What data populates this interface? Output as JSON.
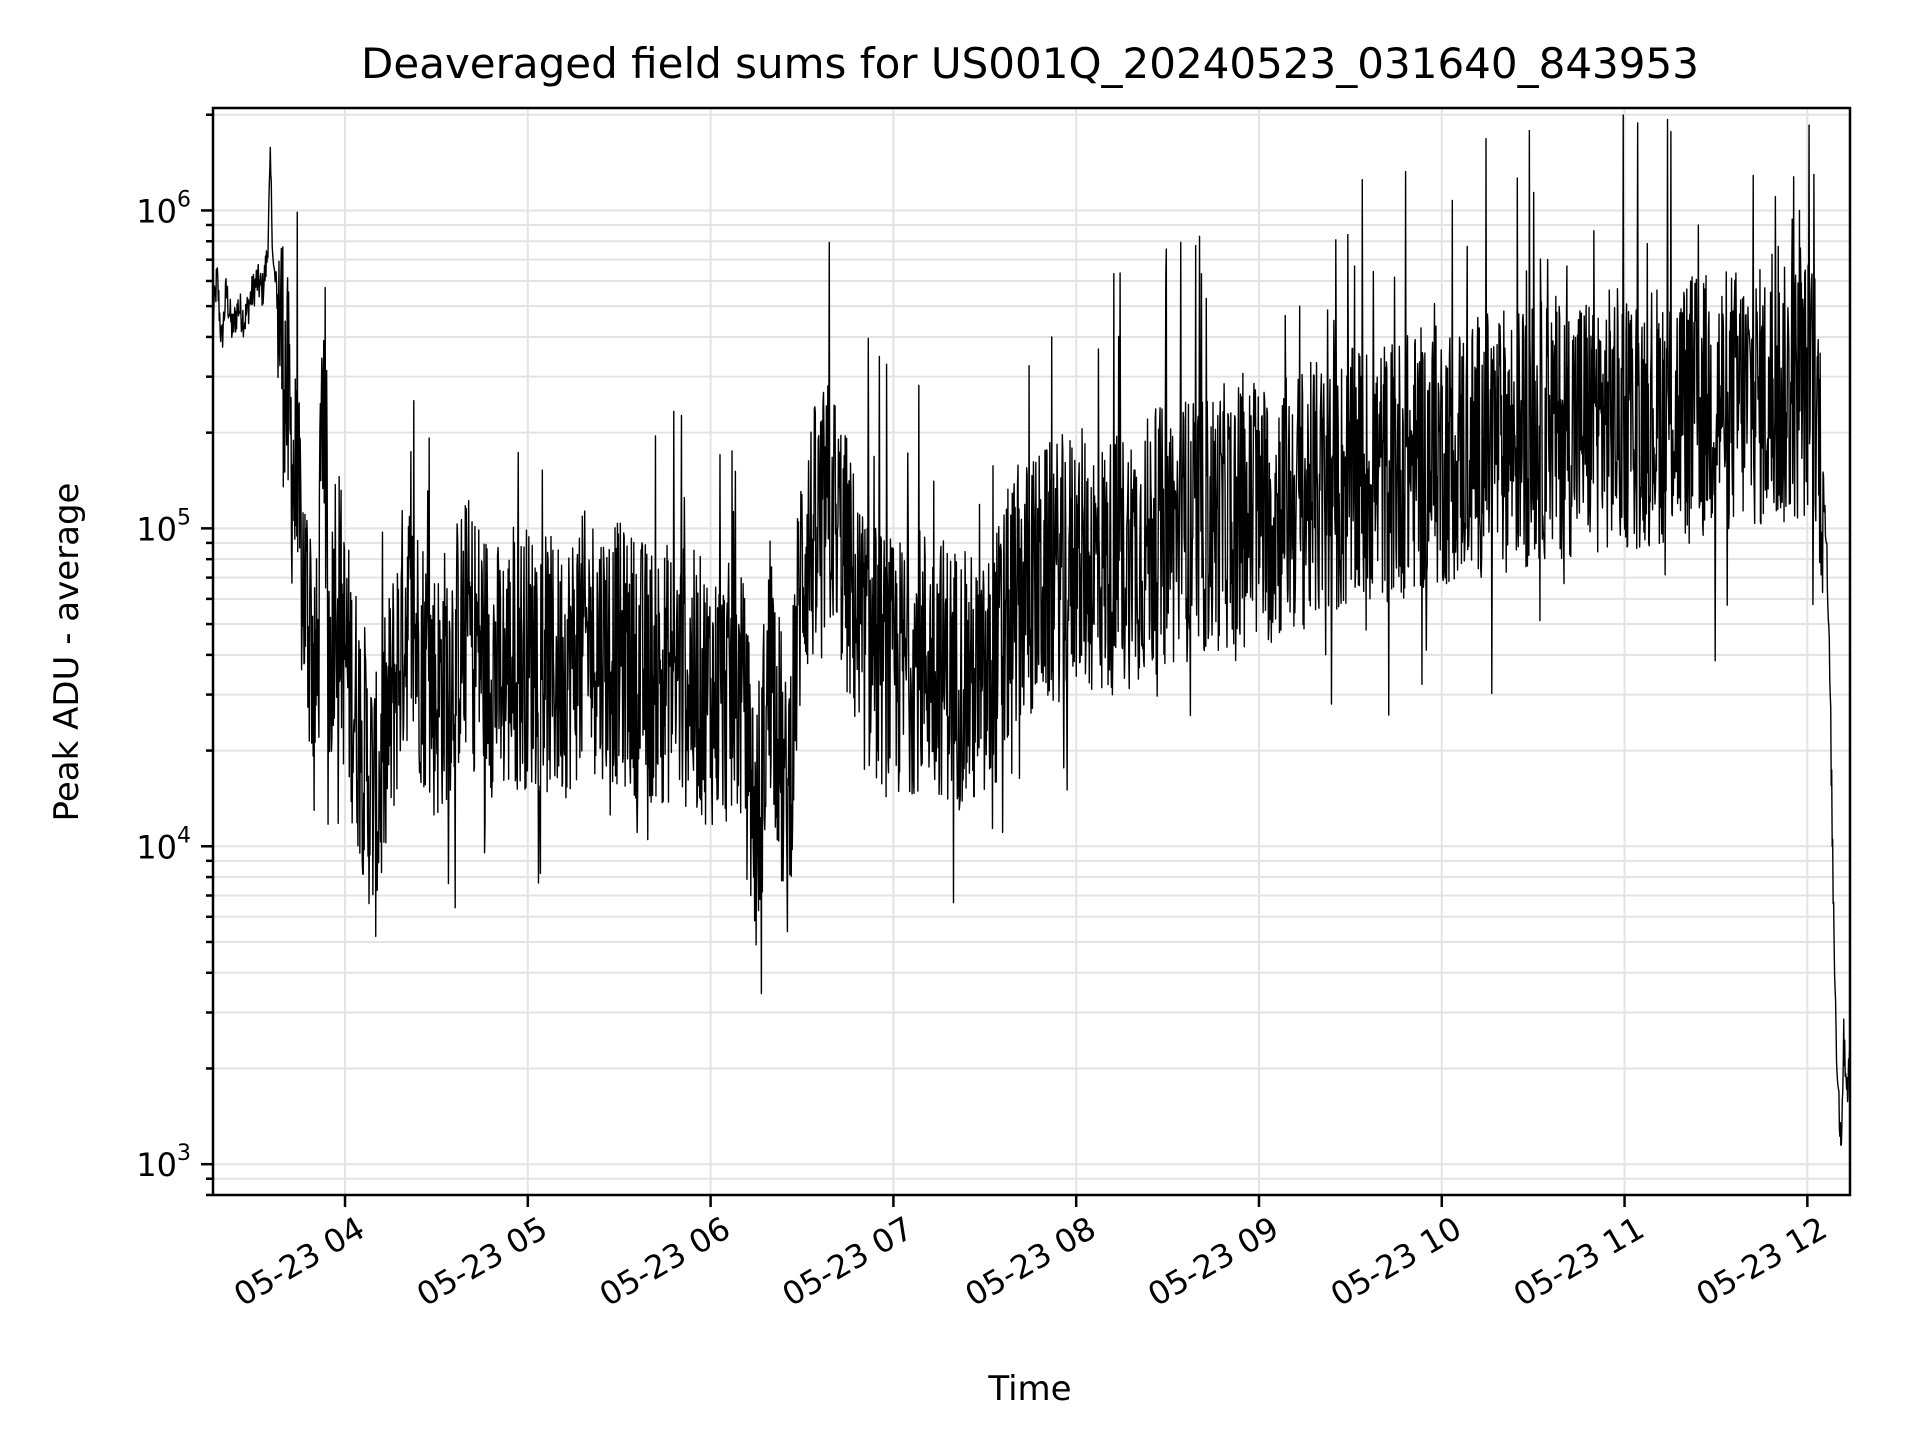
{
  "chart_data": {
    "type": "line",
    "title": "Deaveraged field sums for US001Q_20240523_031640_843953",
    "xlabel": "Time",
    "ylabel": "Peak ADU - average",
    "yscale": "log",
    "ylim": [
      800,
      2100000
    ],
    "xlim": [
      "2024-05-23T03:16:40",
      "2024-05-23T12:14:00"
    ],
    "grid": true,
    "line_color": "#000000",
    "x_ticks": [
      {
        "label": "05-23 04",
        "value": "2024-05-23T04:00:00"
      },
      {
        "label": "05-23 05",
        "value": "2024-05-23T05:00:00"
      },
      {
        "label": "05-23 06",
        "value": "2024-05-23T06:00:00"
      },
      {
        "label": "05-23 07",
        "value": "2024-05-23T07:00:00"
      },
      {
        "label": "05-23 08",
        "value": "2024-05-23T08:00:00"
      },
      {
        "label": "05-23 09",
        "value": "2024-05-23T09:00:00"
      },
      {
        "label": "05-23 10",
        "value": "2024-05-23T10:00:00"
      },
      {
        "label": "05-23 11",
        "value": "2024-05-23T11:00:00"
      },
      {
        "label": "05-23 12",
        "value": "2024-05-23T12:00:00"
      }
    ],
    "y_ticks": [
      {
        "base": "10",
        "exp": "3",
        "value": 1000
      },
      {
        "base": "10",
        "exp": "4",
        "value": 10000
      },
      {
        "base": "10",
        "exp": "5",
        "value": 100000
      },
      {
        "base": "10",
        "exp": "6",
        "value": 1000000
      }
    ],
    "series": [
      {
        "points": [
          [
            "2024-05-23T03:16:40",
            450000
          ],
          [
            "2024-05-23T03:18:00",
            620000
          ],
          [
            "2024-05-23T03:19:30",
            380000
          ],
          [
            "2024-05-23T03:21:00",
            560000
          ],
          [
            "2024-05-23T03:23:00",
            420000
          ],
          [
            "2024-05-23T03:25:00",
            500000
          ],
          [
            "2024-05-23T03:27:00",
            450000
          ],
          [
            "2024-05-23T03:29:00",
            530000
          ],
          [
            "2024-05-23T03:31:00",
            600000
          ],
          [
            "2024-05-23T03:33:00",
            560000
          ],
          [
            "2024-05-23T03:34:30",
            720000
          ],
          [
            "2024-05-23T03:35:30",
            1400000
          ],
          [
            "2024-05-23T03:36:30",
            650000
          ],
          [
            "2024-05-23T03:38:00",
            520000
          ],
          [
            "2024-05-23T03:40:00",
            330000
          ],
          [
            "2024-05-23T03:41:30",
            220000
          ],
          [
            "2024-05-23T03:43:00",
            150000
          ],
          [
            "2024-05-23T03:45:00",
            95000
          ],
          [
            "2024-05-23T03:47:00",
            60000
          ],
          [
            "2024-05-23T03:49:00",
            45000
          ],
          [
            "2024-05-23T03:51:00",
            30000
          ],
          [
            "2024-05-23T03:53:00",
            400000
          ],
          [
            "2024-05-23T03:55:00",
            35000
          ],
          [
            "2024-05-23T03:57:00",
            80000
          ],
          [
            "2024-05-23T04:00:00",
            40000
          ],
          [
            "2024-05-23T04:10:00",
            13000
          ],
          [
            "2024-05-23T04:20:00",
            55000
          ],
          [
            "2024-05-23T04:30:00",
            30000
          ],
          [
            "2024-05-23T04:40:00",
            50000
          ],
          [
            "2024-05-23T04:50:00",
            35000
          ],
          [
            "2024-05-23T05:00:00",
            40000
          ],
          [
            "2024-05-23T05:10:00",
            35000
          ],
          [
            "2024-05-23T05:20:00",
            45000
          ],
          [
            "2024-05-23T05:30:00",
            40000
          ],
          [
            "2024-05-23T05:40:00",
            35000
          ],
          [
            "2024-05-23T05:50:00",
            35000
          ],
          [
            "2024-05-23T06:00:00",
            30000
          ],
          [
            "2024-05-23T06:10:00",
            30000
          ],
          [
            "2024-05-23T06:15:00",
            11000
          ],
          [
            "2024-05-23T06:20:00",
            40000
          ],
          [
            "2024-05-23T06:25:00",
            12000
          ],
          [
            "2024-05-23T06:30:00",
            80000
          ],
          [
            "2024-05-23T06:40:00",
            120000
          ],
          [
            "2024-05-23T06:50:00",
            45000
          ],
          [
            "2024-05-23T07:00:00",
            35000
          ],
          [
            "2024-05-23T07:10:00",
            40000
          ],
          [
            "2024-05-23T07:20:00",
            35000
          ],
          [
            "2024-05-23T07:30:00",
            30000
          ],
          [
            "2024-05-23T07:40:00",
            60000
          ],
          [
            "2024-05-23T07:50:00",
            70000
          ],
          [
            "2024-05-23T08:00:00",
            80000
          ],
          [
            "2024-05-23T08:10:00",
            75000
          ],
          [
            "2024-05-23T08:20:00",
            85000
          ],
          [
            "2024-05-23T08:30:00",
            95000
          ],
          [
            "2024-05-23T08:40:00",
            100000
          ],
          [
            "2024-05-23T08:50:00",
            110000
          ],
          [
            "2024-05-23T09:00:00",
            110000
          ],
          [
            "2024-05-23T09:10:00",
            120000
          ],
          [
            "2024-05-23T09:20:00",
            130000
          ],
          [
            "2024-05-23T09:30:00",
            140000
          ],
          [
            "2024-05-23T09:40:00",
            150000
          ],
          [
            "2024-05-23T09:50:00",
            160000
          ],
          [
            "2024-05-23T10:00:00",
            170000
          ],
          [
            "2024-05-23T10:10:00",
            180000
          ],
          [
            "2024-05-23T10:20:00",
            190000
          ],
          [
            "2024-05-23T10:30:00",
            200000
          ],
          [
            "2024-05-23T10:40:00",
            210000
          ],
          [
            "2024-05-23T10:50:00",
            220000
          ],
          [
            "2024-05-23T11:00:00",
            220000
          ],
          [
            "2024-05-23T11:10:00",
            230000
          ],
          [
            "2024-05-23T11:20:00",
            240000
          ],
          [
            "2024-05-23T11:30:00",
            250000
          ],
          [
            "2024-05-23T11:40:00",
            260000
          ],
          [
            "2024-05-23T11:50:00",
            250000
          ],
          [
            "2024-05-23T12:00:00",
            280000
          ],
          [
            "2024-05-23T12:03:00",
            260000
          ],
          [
            "2024-05-23T12:06:00",
            110000
          ],
          [
            "2024-05-23T12:07:30",
            30000
          ],
          [
            "2024-05-23T12:08:30",
            7000
          ],
          [
            "2024-05-23T12:09:30",
            2500
          ],
          [
            "2024-05-23T12:11:00",
            1150
          ],
          [
            "2024-05-23T12:12:00",
            2500
          ],
          [
            "2024-05-23T12:13:00",
            1800
          ],
          [
            "2024-05-23T12:14:00",
            2000
          ]
        ]
      }
    ]
  }
}
